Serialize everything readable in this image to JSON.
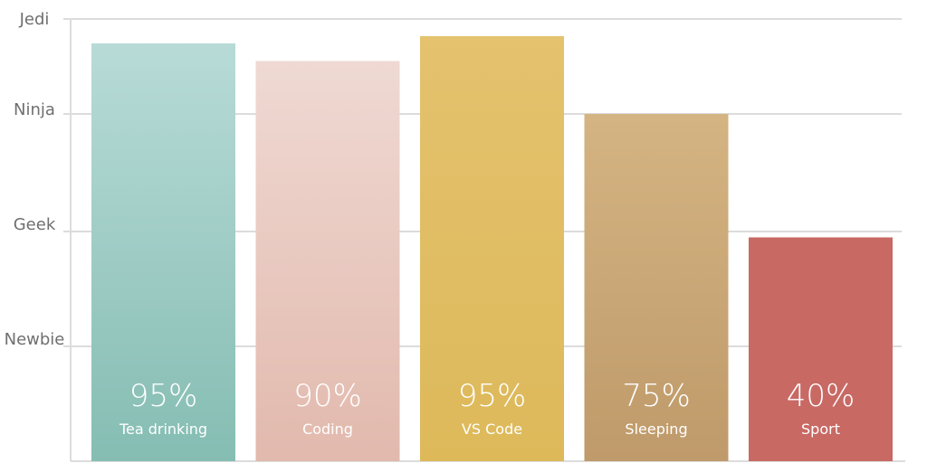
{
  "chart_data": {
    "type": "bar",
    "y_levels": [
      "Newbie",
      "Geek",
      "Ninja",
      "Jedi"
    ],
    "categories": [
      "Tea drinking",
      "Coding",
      "VS Code",
      "Sleeping",
      "Sport"
    ],
    "values": [
      95,
      90,
      95,
      75,
      40
    ],
    "value_labels": [
      "95%",
      "90%",
      "95%",
      "75%",
      "40%"
    ],
    "ylim": [
      0,
      100
    ],
    "grid": true,
    "colors": [
      [
        "#b8dbd7",
        "#85bdb3"
      ],
      [
        "#efd9d3",
        "#e2b9ad"
      ],
      [
        "#e4c26e",
        "#ddb95a"
      ],
      [
        "#d4b482",
        "#bf9a6a"
      ],
      [
        "#c86964",
        "#c86964"
      ]
    ]
  }
}
